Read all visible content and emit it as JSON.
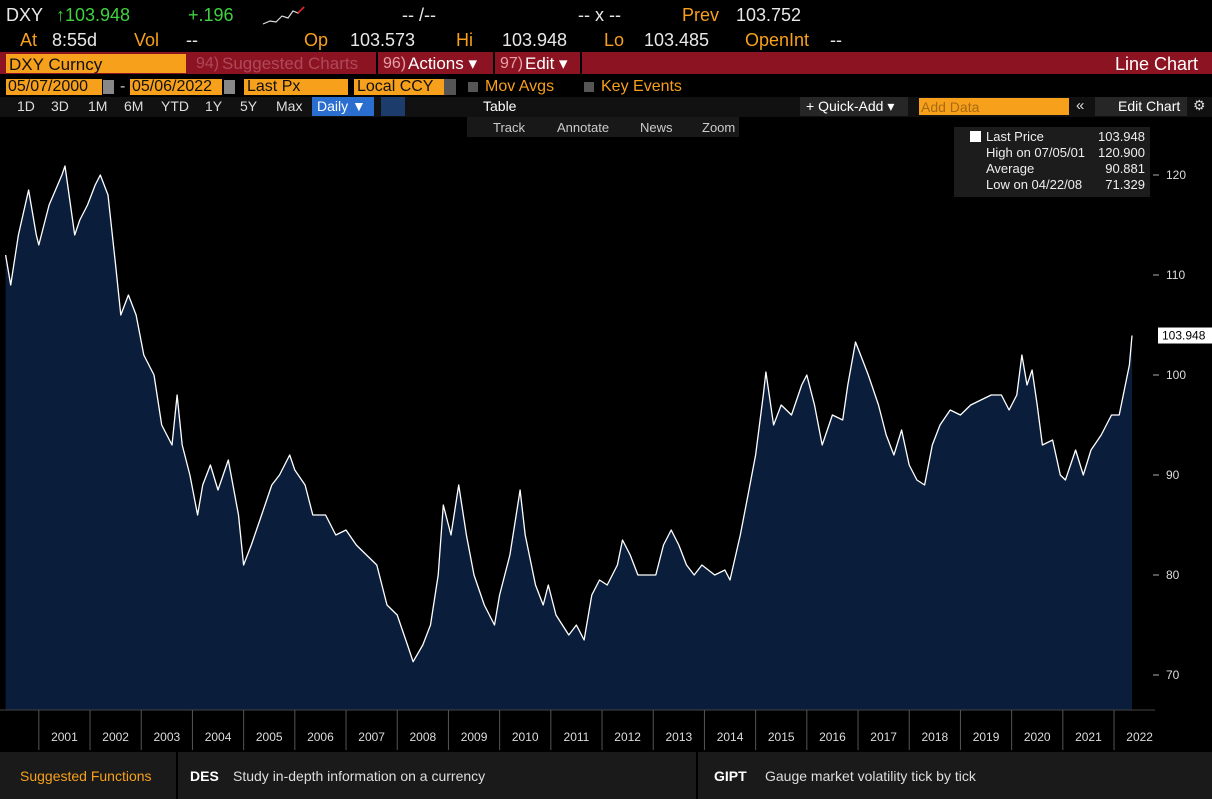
{
  "quote": {
    "ticker": "DXY",
    "last": "↑103.948",
    "change": "+.196",
    "bid_ask": "-- /--",
    "size": "-- x --",
    "prev_label": "Prev",
    "prev": "103.752",
    "time_label": "At",
    "time": "8:55d",
    "vol_label": "Vol",
    "vol": "--",
    "open_label": "Op",
    "open": "103.573",
    "high_label": "Hi",
    "high": "103.948",
    "low_label": "Lo",
    "low": "103.485",
    "oi_label": "OpenInt",
    "oi": "--"
  },
  "toolbar": {
    "security": "DXY Curncy",
    "suggested_num": "94)",
    "suggested": "Suggested Charts",
    "actions_num": "96)",
    "actions": "Actions ▾",
    "edit_num": "97)",
    "edit": "Edit ▾",
    "view": "Line Chart",
    "start_date": "05/07/2000",
    "date_separator": "-",
    "end_date": "05/06/2022",
    "field": "Last Px",
    "currency": "Local CCY",
    "mov_avgs": "Mov Avgs",
    "key_events": "Key Events",
    "periods": [
      "1D",
      "3D",
      "1M",
      "6M",
      "YTD",
      "1Y",
      "5Y",
      "Max"
    ],
    "frequency": "Daily ▼",
    "table": "Table",
    "quick_add": "+ Quick-Add ▾",
    "add_data": "Add Data",
    "edit_chart": "Edit Chart",
    "tools": [
      "Track",
      "Annotate",
      "News",
      "Zoom"
    ]
  },
  "legend": {
    "rows": [
      {
        "label": "Last Price",
        "value": "103.948"
      },
      {
        "label": "High on 07/05/01",
        "value": "120.900"
      },
      {
        "label": "Average",
        "value": "90.881"
      },
      {
        "label": "Low on 04/22/08",
        "value": "71.329"
      }
    ]
  },
  "footer": {
    "title": "Suggested Functions",
    "items": [
      {
        "code": "DES",
        "text": "Study in-depth information on a currency"
      },
      {
        "code": "GIPT",
        "text": "Gauge market volatility tick by tick"
      }
    ]
  },
  "chart_data": {
    "type": "line",
    "x": [
      2000.35,
      2000.45,
      2000.6,
      2000.8,
      2000.95,
      2001.0,
      2001.2,
      2001.45,
      2001.51,
      2001.7,
      2001.8,
      2001.95,
      2002.1,
      2002.2,
      2002.35,
      2002.5,
      2002.6,
      2002.75,
      2002.9,
      2003.05,
      2003.25,
      2003.4,
      2003.6,
      2003.7,
      2003.8,
      2003.95,
      2004.1,
      2004.2,
      2004.35,
      2004.5,
      2004.7,
      2004.9,
      2005.0,
      2005.15,
      2005.35,
      2005.55,
      2005.7,
      2005.9,
      2006.0,
      2006.2,
      2006.35,
      2006.6,
      2006.8,
      2007.0,
      2007.2,
      2007.4,
      2007.6,
      2007.8,
      2008.0,
      2008.2,
      2008.31,
      2008.5,
      2008.65,
      2008.8,
      2008.9,
      2009.05,
      2009.2,
      2009.35,
      2009.5,
      2009.7,
      2009.9,
      2010.0,
      2010.2,
      2010.4,
      2010.5,
      2010.7,
      2010.85,
      2010.95,
      2011.1,
      2011.35,
      2011.5,
      2011.65,
      2011.8,
      2011.95,
      2012.1,
      2012.3,
      2012.4,
      2012.55,
      2012.7,
      2012.9,
      2013.05,
      2013.2,
      2013.35,
      2013.5,
      2013.65,
      2013.8,
      2013.95,
      2014.2,
      2014.4,
      2014.5,
      2014.7,
      2014.85,
      2015.0,
      2015.15,
      2015.2,
      2015.35,
      2015.5,
      2015.7,
      2015.9,
      2016.0,
      2016.15,
      2016.3,
      2016.5,
      2016.7,
      2016.8,
      2016.95,
      2017.05,
      2017.2,
      2017.4,
      2017.55,
      2017.7,
      2017.85,
      2018.0,
      2018.15,
      2018.3,
      2018.45,
      2018.6,
      2018.8,
      2019.0,
      2019.2,
      2019.4,
      2019.6,
      2019.8,
      2019.95,
      2020.1,
      2020.2,
      2020.3,
      2020.4,
      2020.5,
      2020.6,
      2020.8,
      2020.95,
      2021.05,
      2021.25,
      2021.4,
      2021.55,
      2021.75,
      2021.95,
      2022.1,
      2022.2,
      2022.3,
      2022.35
    ],
    "series": [
      {
        "name": "Last Price",
        "color": "#ffffff",
        "values": [
          112,
          109,
          114,
          118.5,
          114,
          113,
          117,
          120,
          120.9,
          114,
          115.5,
          117,
          119,
          120,
          118,
          111,
          106,
          108,
          106,
          102,
          100,
          95,
          93,
          98,
          93,
          90,
          86,
          89,
          91,
          88.5,
          91.5,
          86,
          81,
          83,
          86,
          89,
          90,
          92,
          90.5,
          89,
          86,
          86,
          84,
          84.5,
          83,
          82,
          81,
          77,
          76,
          73,
          71.329,
          73,
          75,
          80,
          87,
          84,
          89,
          84,
          80,
          77,
          75,
          78,
          82,
          88.5,
          84,
          79,
          77,
          79,
          76,
          74,
          75,
          73.5,
          78,
          79.5,
          79,
          81,
          83.5,
          82,
          80,
          80,
          80,
          83,
          84.5,
          83,
          81,
          80,
          81,
          80,
          80.5,
          79.5,
          84,
          88,
          92,
          98,
          100.3,
          95,
          97,
          96,
          99,
          100,
          97,
          93,
          96,
          95.5,
          99,
          103.3,
          102,
          100,
          97,
          94,
          92,
          94.5,
          91,
          89.5,
          89,
          93,
          95,
          96.5,
          96,
          97,
          97.5,
          98,
          98,
          96.5,
          98,
          102,
          99,
          100.5,
          97,
          93,
          93.5,
          90,
          89.5,
          92.5,
          90,
          92.5,
          94,
          96,
          96,
          98.5,
          101,
          103.948
        ]
      }
    ],
    "xlim": [
      2000.3,
      2022.8
    ],
    "xticks": [
      2001,
      2002,
      2003,
      2004,
      2005,
      2006,
      2007,
      2008,
      2009,
      2010,
      2011,
      2012,
      2013,
      2014,
      2015,
      2016,
      2017,
      2018,
      2019,
      2020,
      2021,
      2022
    ],
    "ylim": [
      66.5,
      124.5
    ],
    "yticks": [
      70,
      80,
      90,
      100,
      110,
      120
    ],
    "area_color": "#0a1e3c"
  }
}
